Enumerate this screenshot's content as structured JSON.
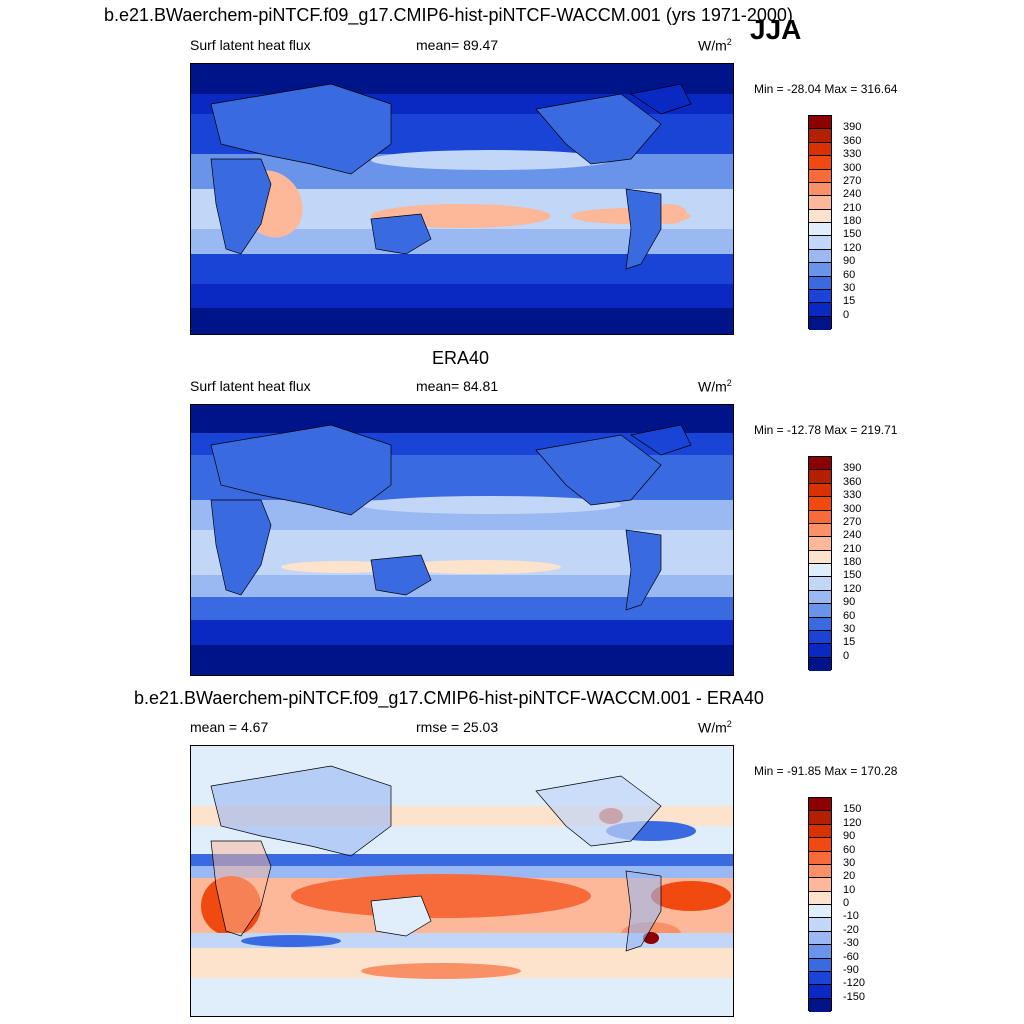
{
  "figure": {
    "case_title": "b.e21.BWaerchem-piNTCF.f09_g17.CMIP6-hist-piNTCF-WACCM.001 (yrs 1971-2000)",
    "season": "JJA"
  },
  "panels": [
    {
      "title": "",
      "variable": "Surf latent heat flux",
      "stat": "mean=  89.47",
      "units": "W/m",
      "units_sup": "2",
      "minmax": "Min = -28.04 Max = 316.64",
      "colorbar": {
        "levels": [
          "390",
          "360",
          "330",
          "300",
          "270",
          "240",
          "210",
          "180",
          "150",
          "120",
          "90",
          "60",
          "30",
          "15",
          "0"
        ],
        "colors": [
          "#8b0000",
          "#b22000",
          "#d83200",
          "#f04a10",
          "#f76b3a",
          "#f99066",
          "#fcb899",
          "#fde2cc",
          "#e0edfb",
          "#c2d6f7",
          "#9ab8f2",
          "#6a93ea",
          "#3a6ae0",
          "#1a44d6",
          "#0a28c2",
          "#00148a"
        ]
      }
    },
    {
      "title": "ERA40",
      "variable": "Surf latent heat flux",
      "stat": "mean=  84.81",
      "units": "W/m",
      "units_sup": "2",
      "minmax": "Min = -12.78 Max = 219.71",
      "colorbar": {
        "levels": [
          "390",
          "360",
          "330",
          "300",
          "270",
          "240",
          "210",
          "180",
          "150",
          "120",
          "90",
          "60",
          "30",
          "15",
          "0"
        ],
        "colors": [
          "#8b0000",
          "#b22000",
          "#d83200",
          "#f04a10",
          "#f76b3a",
          "#f99066",
          "#fcb899",
          "#fde2cc",
          "#e0edfb",
          "#c2d6f7",
          "#9ab8f2",
          "#6a93ea",
          "#3a6ae0",
          "#1a44d6",
          "#0a28c2",
          "#00148a"
        ]
      }
    },
    {
      "title": "b.e21.BWaerchem-piNTCF.f09_g17.CMIP6-hist-piNTCF-WACCM.001 - ERA40",
      "variable": "mean =   4.67",
      "stat": "rmse =  25.03",
      "units": "W/m",
      "units_sup": "2",
      "minmax": "Min = -91.85 Max = 170.28",
      "colorbar": {
        "levels": [
          "150",
          "120",
          "90",
          "60",
          "30",
          "20",
          "10",
          "0",
          "-10",
          "-20",
          "-30",
          "-60",
          "-90",
          "-120",
          "-150"
        ],
        "colors": [
          "#8b0000",
          "#b22000",
          "#d83200",
          "#f04a10",
          "#f76b3a",
          "#f99066",
          "#fcb899",
          "#fde2cc",
          "#e0edfb",
          "#c2d6f7",
          "#9ab8f2",
          "#6a93ea",
          "#3a6ae0",
          "#1a44d6",
          "#0a28c2",
          "#00148a"
        ]
      }
    }
  ]
}
